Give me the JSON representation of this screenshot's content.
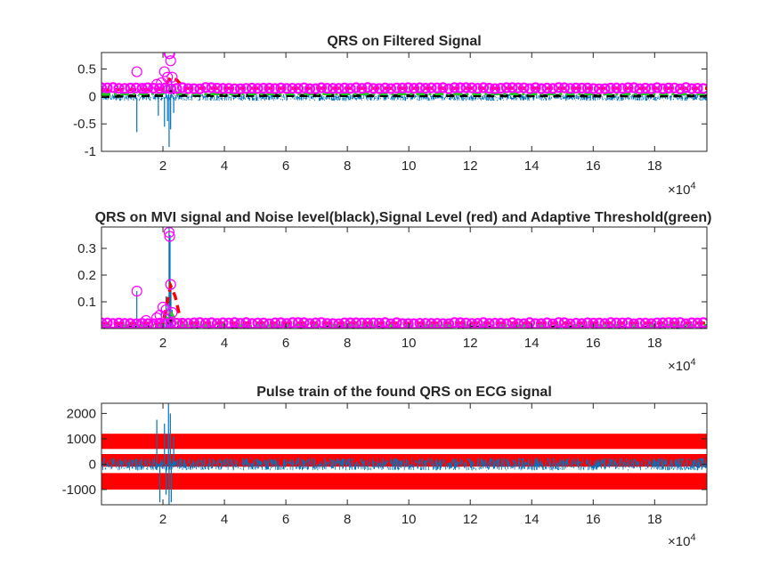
{
  "colors": {
    "signal": "#0072BD",
    "peaks": "#FF00FF",
    "signal_level": "#FF0000",
    "noise_level": "#000000",
    "threshold": "#22CC22",
    "axes": "#262626"
  },
  "chart_data": [
    {
      "type": "line",
      "title": "QRS on Filtered Signal",
      "xlabel": "",
      "ylabel": "",
      "xlim": [
        0,
        197000
      ],
      "ylim": [
        -1,
        0.8
      ],
      "x_ticks": [
        20000,
        40000,
        60000,
        80000,
        100000,
        120000,
        140000,
        160000,
        180000
      ],
      "x_tick_labels": [
        "2",
        "4",
        "6",
        "8",
        "10",
        "12",
        "14",
        "16",
        "18"
      ],
      "y_ticks": [
        -1,
        -0.5,
        0,
        0.5
      ],
      "y_tick_labels": [
        "-1",
        "-0.5",
        "0",
        "0.5"
      ],
      "x_exponent_base": "×10",
      "x_exponent": "4",
      "grid": false,
      "series": [
        {
          "style": "signal-trace",
          "baseline": -0.02,
          "band": 0.06,
          "spikes": [
            [
              11500,
              -0.65
            ],
            [
              18500,
              -0.35
            ],
            [
              20500,
              -0.55
            ],
            [
              21500,
              -0.45
            ],
            [
              22000,
              -0.92
            ],
            [
              22500,
              -0.6
            ],
            [
              21000,
              0.2
            ],
            [
              22800,
              0.3
            ],
            [
              23500,
              -0.3
            ]
          ]
        },
        {
          "style": "peaks",
          "x": [
            11500,
            14500,
            18000,
            19500,
            20500,
            21500,
            22000,
            22200,
            22500,
            23000
          ],
          "y": [
            0.45,
            0.15,
            0.22,
            0.25,
            0.45,
            0.35,
            0.78,
            0.78,
            0.65,
            0.35
          ],
          "baseline": 0.15
        },
        {
          "style": "signal-level",
          "x": [
            0,
            20000,
            22500,
            24500,
            27000,
            197000
          ],
          "y": [
            0.12,
            0.13,
            0.35,
            0.3,
            0.15,
            0.15
          ]
        },
        {
          "style": "noise-level",
          "x": [
            0,
            20000,
            22500,
            25000,
            197000
          ],
          "y": [
            0.0,
            0.02,
            0.1,
            0.02,
            0.01
          ]
        },
        {
          "style": "threshold",
          "x": [
            0,
            20000,
            22500,
            25000,
            197000
          ],
          "y": [
            0.04,
            0.06,
            0.15,
            0.05,
            0.05
          ]
        }
      ]
    },
    {
      "type": "line",
      "title": "QRS on MVI signal and Noise level(black),Signal Level (red) and Adaptive Threshold(green)",
      "xlabel": "",
      "ylabel": "",
      "xlim": [
        0,
        197000
      ],
      "ylim": [
        0,
        0.38
      ],
      "x_ticks": [
        20000,
        40000,
        60000,
        80000,
        100000,
        120000,
        140000,
        160000,
        180000
      ],
      "x_tick_labels": [
        "2",
        "4",
        "6",
        "8",
        "10",
        "12",
        "14",
        "16",
        "18"
      ],
      "y_ticks": [
        0.1,
        0.2,
        0.3
      ],
      "y_tick_labels": [
        "0.1",
        "0.2",
        "0.3"
      ],
      "x_exponent_base": "×10",
      "x_exponent": "4",
      "grid": false,
      "series": [
        {
          "style": "signal-trace",
          "baseline": 0.002,
          "band": 0.004,
          "spikes": [
            [
              11500,
              0.14
            ],
            [
              14500,
              0.01
            ],
            [
              18000,
              0.03
            ],
            [
              19500,
              0.08
            ],
            [
              20500,
              0.05
            ],
            [
              21000,
              0.12
            ],
            [
              22000,
              0.38
            ],
            [
              22300,
              0.35
            ],
            [
              22600,
              0.16
            ],
            [
              23000,
              0.07
            ]
          ]
        },
        {
          "style": "peaks",
          "x": [
            11500,
            14500,
            18000,
            19000,
            20000,
            21000,
            22000,
            22200,
            22500,
            23000
          ],
          "y": [
            0.14,
            0.03,
            0.04,
            0.05,
            0.08,
            0.07,
            0.36,
            0.345,
            0.165,
            0.06
          ],
          "baseline": 0.02
        },
        {
          "style": "signal-level",
          "x": [
            0,
            20000,
            22500,
            24000,
            26000,
            197000
          ],
          "y": [
            0.018,
            0.02,
            0.16,
            0.12,
            0.02,
            0.02
          ]
        },
        {
          "style": "noise-level",
          "x": [
            0,
            20000,
            22500,
            25000,
            197000
          ],
          "y": [
            0.005,
            0.006,
            0.03,
            0.006,
            0.005
          ]
        },
        {
          "style": "threshold",
          "x": [
            0,
            20000,
            22500,
            25000,
            197000
          ],
          "y": [
            0.009,
            0.012,
            0.06,
            0.012,
            0.011
          ]
        }
      ]
    },
    {
      "type": "line",
      "title": "Pulse train of the found QRS on ECG signal",
      "xlabel": "",
      "ylabel": "",
      "xlim": [
        0,
        197000
      ],
      "ylim": [
        -1600,
        2400
      ],
      "x_ticks": [
        20000,
        40000,
        60000,
        80000,
        100000,
        120000,
        140000,
        160000,
        180000
      ],
      "x_tick_labels": [
        "2",
        "4",
        "6",
        "8",
        "10",
        "12",
        "14",
        "16",
        "18"
      ],
      "y_ticks": [
        -1000,
        0,
        1000,
        2000
      ],
      "y_tick_labels": [
        "-1000",
        "0",
        "1000",
        "2000"
      ],
      "x_exponent_base": "×10",
      "x_exponent": "4",
      "grid": false,
      "series": [
        {
          "style": "pulse-bands",
          "bands": [
            [
              600,
              1200
            ],
            [
              -100,
              400
            ],
            [
              -1000,
              -350
            ]
          ]
        },
        {
          "style": "signal-trace",
          "baseline": 0,
          "band": 250,
          "spikes": [
            [
              18000,
              1750
            ],
            [
              19000,
              -1500
            ],
            [
              20500,
              1600
            ],
            [
              21000,
              -1200
            ],
            [
              21800,
              2400
            ],
            [
              22000,
              -1800
            ],
            [
              22400,
              2000
            ],
            [
              22700,
              -1500
            ],
            [
              23500,
              1100
            ]
          ]
        }
      ]
    }
  ]
}
